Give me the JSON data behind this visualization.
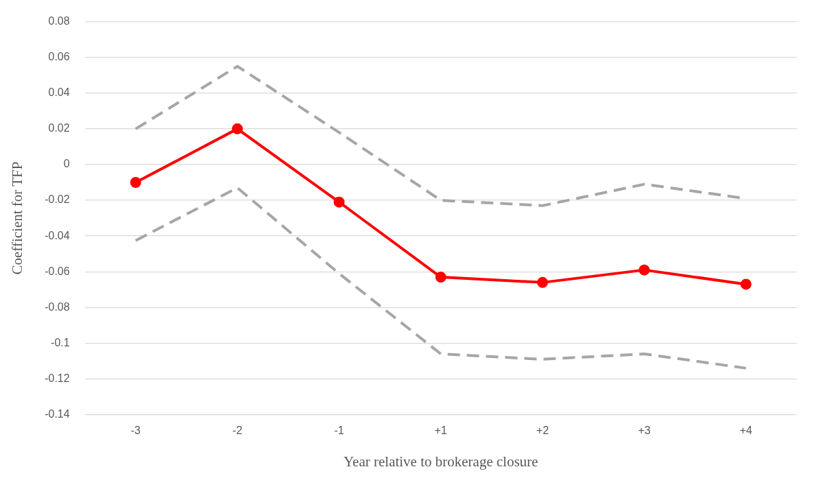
{
  "chart_data": {
    "type": "line",
    "xlabel": "Year relative to brokerage closure",
    "ylabel": "Coefficient for TFP",
    "categories": [
      "-3",
      "-2",
      "-1",
      "+1",
      "+2",
      "+3",
      "+4"
    ],
    "series": [
      {
        "color": "#a6a6a6",
        "line_style": "dashed",
        "marker": "none",
        "values": [
          0.02,
          0.055,
          0.018,
          -0.02,
          -0.023,
          -0.011,
          -0.019
        ]
      },
      {
        "color": "#a6a6a6",
        "line_style": "dashed",
        "marker": "none",
        "values": [
          -0.0425,
          -0.013,
          -0.061,
          -0.106,
          -0.109,
          -0.106,
          -0.114
        ]
      },
      {
        "color": "#ff0000",
        "line_style": "solid",
        "marker": "circle",
        "values": [
          -0.01,
          0.02,
          -0.021,
          -0.063,
          -0.066,
          -0.059,
          -0.067
        ]
      }
    ],
    "ylim": [
      -0.14,
      0.08
    ],
    "yticks": [
      -0.14,
      -0.12,
      -0.1,
      -0.08,
      -0.06,
      -0.04,
      -0.02,
      0,
      0.02,
      0.04,
      0.06,
      0.08
    ],
    "grid": "y",
    "legend": false
  }
}
